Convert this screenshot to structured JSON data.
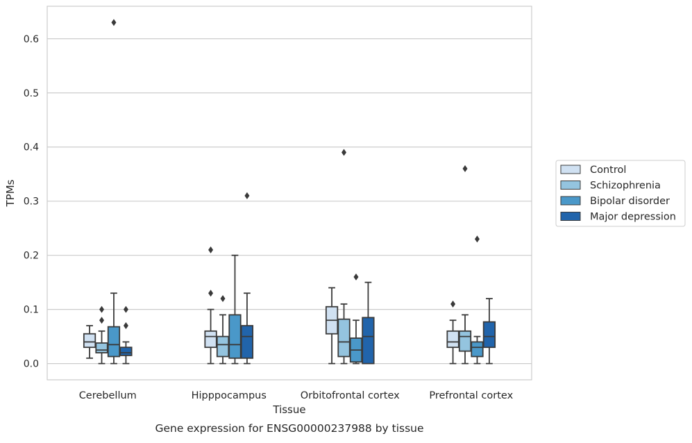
{
  "chart_data": {
    "type": "box",
    "title": "Gene expression for ENSG00000237988 by tissue",
    "xlabel": "Tissue",
    "ylabel": "TPMs",
    "categories": [
      "Cerebellum",
      "Hipppocampus",
      "Orbitofrontal cortex",
      "Prefrontal cortex"
    ],
    "ylim": [
      -0.03,
      0.66
    ],
    "yticks": [
      "0.0",
      "0.1",
      "0.2",
      "0.3",
      "0.4",
      "0.5",
      "0.6"
    ],
    "grid": true,
    "legend_position": "right",
    "series": [
      {
        "name": "Control",
        "color": "#d0e1f2",
        "boxes": [
          {
            "whisker_low": 0.01,
            "q1": 0.03,
            "median": 0.04,
            "q3": 0.055,
            "whisker_high": 0.07,
            "outliers": []
          },
          {
            "whisker_low": 0.0,
            "q1": 0.03,
            "median": 0.05,
            "q3": 0.06,
            "whisker_high": 0.1,
            "outliers": [
              0.13,
              0.21
            ]
          },
          {
            "whisker_low": 0.0,
            "q1": 0.055,
            "median": 0.08,
            "q3": 0.105,
            "whisker_high": 0.14,
            "outliers": []
          },
          {
            "whisker_low": 0.0,
            "q1": 0.03,
            "median": 0.04,
            "q3": 0.06,
            "whisker_high": 0.08,
            "outliers": [
              0.11
            ]
          }
        ]
      },
      {
        "name": "Schizophrenia",
        "color": "#94c4df",
        "boxes": [
          {
            "whisker_low": 0.0,
            "q1": 0.02,
            "median": 0.025,
            "q3": 0.038,
            "whisker_high": 0.06,
            "outliers": [
              0.08,
              0.1
            ]
          },
          {
            "whisker_low": 0.0,
            "q1": 0.013,
            "median": 0.035,
            "q3": 0.05,
            "whisker_high": 0.09,
            "outliers": [
              0.12
            ]
          },
          {
            "whisker_low": 0.0,
            "q1": 0.013,
            "median": 0.04,
            "q3": 0.082,
            "whisker_high": 0.11,
            "outliers": [
              0.39
            ]
          },
          {
            "whisker_low": 0.0,
            "q1": 0.023,
            "median": 0.05,
            "q3": 0.06,
            "whisker_high": 0.09,
            "outliers": [
              0.36
            ]
          }
        ]
      },
      {
        "name": "Bipolar disorder",
        "color": "#4a98c9",
        "boxes": [
          {
            "whisker_low": 0.0,
            "q1": 0.013,
            "median": 0.035,
            "q3": 0.068,
            "whisker_high": 0.13,
            "outliers": [
              0.63
            ]
          },
          {
            "whisker_low": 0.0,
            "q1": 0.01,
            "median": 0.035,
            "q3": 0.09,
            "whisker_high": 0.2,
            "outliers": []
          },
          {
            "whisker_low": 0.0,
            "q1": 0.003,
            "median": 0.025,
            "q3": 0.047,
            "whisker_high": 0.08,
            "outliers": [
              0.16
            ]
          },
          {
            "whisker_low": 0.0,
            "q1": 0.013,
            "median": 0.03,
            "q3": 0.04,
            "whisker_high": 0.05,
            "outliers": [
              0.23
            ]
          }
        ]
      },
      {
        "name": "Major depression",
        "color": "#2164ab",
        "boxes": [
          {
            "whisker_low": 0.0,
            "q1": 0.015,
            "median": 0.02,
            "q3": 0.03,
            "whisker_high": 0.04,
            "outliers": [
              0.07,
              0.1
            ]
          },
          {
            "whisker_low": 0.0,
            "q1": 0.01,
            "median": 0.05,
            "q3": 0.07,
            "whisker_high": 0.13,
            "outliers": [
              0.31
            ]
          },
          {
            "whisker_low": 0.0,
            "q1": 0.0,
            "median": 0.05,
            "q3": 0.085,
            "whisker_high": 0.15,
            "outliers": []
          },
          {
            "whisker_low": 0.0,
            "q1": 0.03,
            "median": 0.05,
            "q3": 0.077,
            "whisker_high": 0.12,
            "outliers": []
          }
        ]
      }
    ]
  }
}
